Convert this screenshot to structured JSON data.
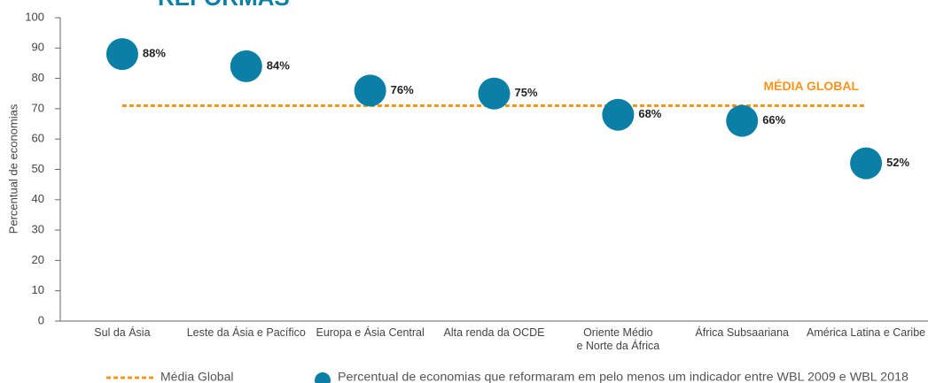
{
  "chart_data": {
    "type": "dot",
    "title": "REFORMAS",
    "y_label": "Percentual de economias",
    "categories": [
      "Sul da Ásia",
      "Leste da Ásia e Pacífico",
      "Europa e Ásia Central",
      "Alta renda da OCDE",
      "Oriente Médio\ne Norte da África",
      "África Subsaariana",
      "América Latina e Caribe"
    ],
    "series": [
      {
        "name": "Percentual de economias que reformaram em pelo menos um indicador entre WBL 2009 e WBL 2018",
        "color": "#0b7fa5",
        "values": [
          88,
          84,
          76,
          75,
          68,
          66,
          52
        ],
        "value_labels": [
          "88%",
          "84%",
          "76%",
          "75%",
          "68%",
          "66%",
          "52%"
        ]
      }
    ],
    "average": {
      "name": "Média Global",
      "label": "MÉDIA GLOBAL",
      "value": 71,
      "color": "#f7941d"
    },
    "ylim": [
      0,
      100
    ],
    "yticks": [
      0,
      10,
      20,
      30,
      40,
      50,
      60,
      70,
      80,
      90,
      100
    ],
    "grid": false
  }
}
